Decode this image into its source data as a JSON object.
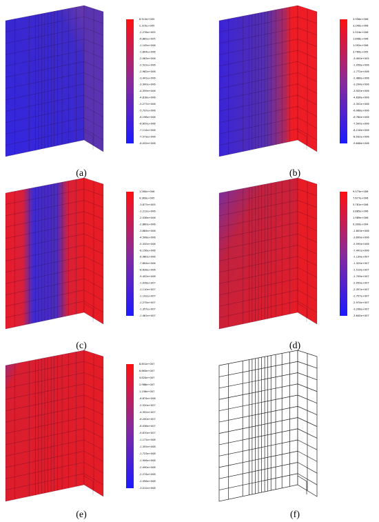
{
  "panels": [
    {
      "label": "(a)",
      "colorbar_labels": [
        "6.913e+005",
        "2.315e+005",
        "-2.276e+005",
        "-6.862e+005",
        "-1.145e+006",
        "-1.604e+006",
        "-2.063e+006",
        "-2.522e+006",
        "-2.982e+006",
        "-3.441e+006",
        "-3.900e+006",
        "-4.359e+006",
        "-4.818e+006",
        "-5.277e+006",
        "-5.737e+006",
        "-6.196e+006",
        "-6.655e+006",
        "-7.114e+006",
        "-7.573e+006",
        "-8.032e+006"
      ]
    },
    {
      "label": "(b)",
      "colorbar_labels": [
        "3.956e+006",
        "3.240e+006",
        "2.524e+006",
        "1.808e+006",
        "1.092e+006",
        "3.760e+005",
        "-3.400e+005",
        "-1.056e+006",
        "-1.772e+006",
        "-2.488e+006",
        "-3.204e+006",
        "-3.920e+006",
        "-4.636e+006",
        "-5.352e+006",
        "-6.068e+006",
        "-6.784e+006",
        "-7.500e+006",
        "-8.216e+006",
        "-8.932e+006",
        "-9.648e+006"
      ]
    },
    {
      "label": "(c)",
      "colorbar_labels": [
        "1.260e+006",
        "4.363e+005",
        "-3.877e+005",
        "-1.212e+006",
        "-2.036e+006",
        "-2.860e+006",
        "-3.684e+006",
        "-4.508e+006",
        "-5.332e+006",
        "-6.156e+006",
        "-6.980e+006",
        "-7.804e+006",
        "-8.628e+006",
        "-9.452e+006",
        "-1.028e+007",
        "-1.110e+007",
        "-1.192e+007",
        "-1.275e+007",
        "-1.357e+007",
        "-1.461e+007"
      ]
    },
    {
      "label": "(d)",
      "colorbar_labels": [
        "9.573e+006",
        "7.677e+006",
        "5.781e+006",
        "3.885e+006",
        "1.989e+006",
        "9.300e+004",
        "-1.803e+006",
        "-3.699e+006",
        "-5.595e+006",
        "-7.491e+006",
        "-1.139e+007",
        "-1.329e+007",
        "-1.519e+007",
        "-1.709e+007",
        "-2.059e+007",
        "-2.357e+007",
        "-2.757e+007",
        "-2.974e+007",
        "-3.208e+007",
        "-3.645e+007"
      ]
    },
    {
      "label": "(e)",
      "colorbar_labels": [
        "8.851e+007",
        "6.663e+007",
        "4.820e+007",
        "2.988e+007",
        "1.156e+007",
        "-6.874e+006",
        "-2.520e+007",
        "-4.352e+007",
        "-6.200e+007",
        "-8.036e+007",
        "-9.870e+007",
        "-1.171e+008",
        "-1.355e+008",
        "-1.723e+008",
        "-1.906e+008",
        "-2.090e+008",
        "-2.274e+008",
        "-2.456e+008",
        "-3.012e+008"
      ]
    },
    {
      "label": "(f)"
    }
  ]
}
